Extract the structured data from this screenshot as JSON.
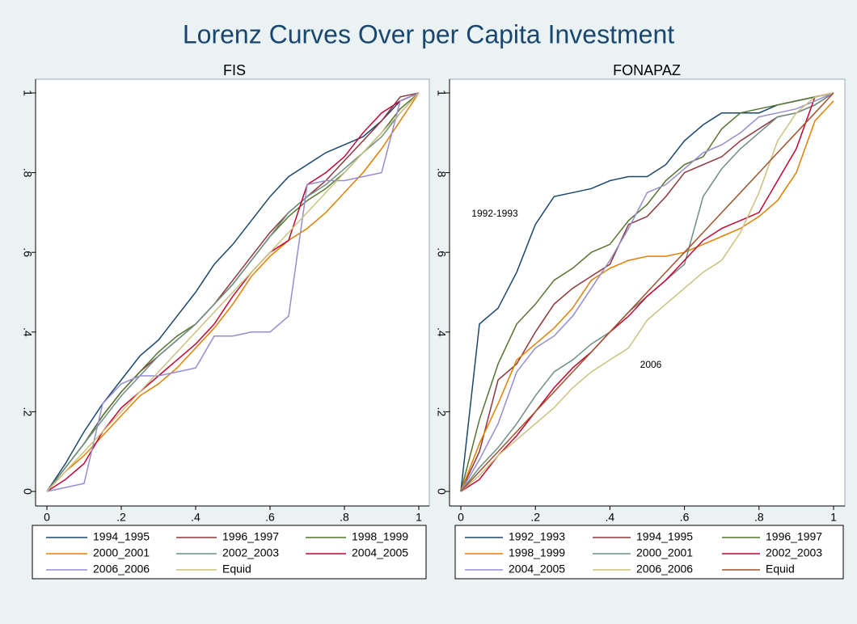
{
  "title": "Lorenz Curves Over per Capita Investment",
  "chart_data": [
    {
      "type": "line",
      "title": "FIS",
      "x": [
        0,
        0.05,
        0.1,
        0.15,
        0.2,
        0.25,
        0.3,
        0.35,
        0.4,
        0.45,
        0.5,
        0.55,
        0.6,
        0.65,
        0.7,
        0.75,
        0.8,
        0.85,
        0.9,
        0.95,
        1
      ],
      "xlim": [
        0,
        1
      ],
      "ylim": [
        0,
        1
      ],
      "xticks": [
        0,
        {
          "value": 0.2,
          "label": ".2"
        },
        {
          "value": 0.4,
          "label": ".4"
        },
        {
          "value": 0.6,
          "label": ".6"
        },
        {
          "value": 0.8,
          "label": ".8"
        },
        1
      ],
      "yticks": [
        0,
        {
          "value": 0.2,
          "label": ".2"
        },
        {
          "value": 0.4,
          "label": ".4"
        },
        {
          "value": 0.6,
          "label": ".6"
        },
        {
          "value": 0.8,
          "label": ".8"
        },
        1
      ],
      "series": [
        {
          "name": "1994_1995",
          "color": "#1a476f",
          "values": [
            0,
            0.07,
            0.15,
            0.22,
            0.28,
            0.34,
            0.38,
            0.44,
            0.5,
            0.57,
            0.62,
            0.68,
            0.74,
            0.79,
            0.82,
            0.85,
            0.87,
            0.89,
            0.93,
            0.98,
            1
          ]
        },
        {
          "name": "1996_1997",
          "color": "#90353b",
          "values": [
            0,
            0.06,
            0.12,
            0.19,
            0.25,
            0.3,
            0.34,
            0.38,
            0.42,
            0.47,
            0.53,
            0.59,
            0.65,
            0.7,
            0.74,
            0.78,
            0.83,
            0.88,
            0.93,
            0.99,
            1
          ]
        },
        {
          "name": "1998_1999",
          "color": "#55752f",
          "values": [
            0,
            0.06,
            0.12,
            0.19,
            0.25,
            0.3,
            0.35,
            0.39,
            0.42,
            0.47,
            0.52,
            0.58,
            0.64,
            0.69,
            0.73,
            0.76,
            0.8,
            0.85,
            0.9,
            0.96,
            1
          ]
        },
        {
          "name": "2000_2001",
          "color": "#e37e00",
          "values": [
            0,
            0.05,
            0.09,
            0.14,
            0.19,
            0.24,
            0.27,
            0.31,
            0.36,
            0.41,
            0.47,
            0.54,
            0.59,
            0.63,
            0.66,
            0.7,
            0.75,
            0.8,
            0.86,
            0.93,
            1
          ]
        },
        {
          "name": "2002_2003",
          "color": "#6e8e84",
          "values": [
            0,
            0.06,
            0.12,
            0.18,
            0.24,
            0.29,
            0.34,
            0.38,
            0.42,
            0.47,
            0.52,
            0.58,
            0.64,
            0.7,
            0.74,
            0.77,
            0.81,
            0.85,
            0.89,
            0.95,
            1
          ]
        },
        {
          "name": "2004_2005",
          "color": "#c10534",
          "values": [
            0,
            0.03,
            0.07,
            0.15,
            0.21,
            0.25,
            0.29,
            0.33,
            0.37,
            0.42,
            0.49,
            0.55,
            0.6,
            0.63,
            0.77,
            0.8,
            0.84,
            0.9,
            0.95,
            0.98,
            1
          ]
        },
        {
          "name": "2006_2006",
          "color": "#938dd2",
          "values": [
            0,
            0.01,
            0.02,
            0.22,
            0.27,
            0.29,
            0.29,
            0.3,
            0.31,
            0.39,
            0.39,
            0.4,
            0.4,
            0.44,
            0.77,
            0.78,
            0.78,
            0.79,
            0.8,
            0.98,
            1
          ]
        },
        {
          "name": "Equid",
          "color": "#cac27e",
          "values": [
            0,
            0.05,
            0.1,
            0.15,
            0.2,
            0.25,
            0.3,
            0.35,
            0.4,
            0.45,
            0.5,
            0.55,
            0.6,
            0.65,
            0.7,
            0.75,
            0.8,
            0.85,
            0.9,
            0.95,
            1
          ]
        }
      ]
    },
    {
      "type": "line",
      "title": "FONAPAZ",
      "x": [
        0,
        0.05,
        0.1,
        0.15,
        0.2,
        0.25,
        0.3,
        0.35,
        0.4,
        0.45,
        0.5,
        0.55,
        0.6,
        0.65,
        0.7,
        0.75,
        0.8,
        0.85,
        0.9,
        0.95,
        1
      ],
      "xlim": [
        0,
        1
      ],
      "ylim": [
        0,
        1
      ],
      "xticks": [
        0,
        {
          "value": 0.2,
          "label": ".2"
        },
        {
          "value": 0.4,
          "label": ".4"
        },
        {
          "value": 0.6,
          "label": ".6"
        },
        {
          "value": 0.8,
          "label": ".8"
        },
        1
      ],
      "yticks": [
        0,
        {
          "value": 0.2,
          "label": ".2"
        },
        {
          "value": 0.4,
          "label": ".4"
        },
        {
          "value": 0.6,
          "label": ".6"
        },
        {
          "value": 0.8,
          "label": ".8"
        },
        1
      ],
      "annotations": [
        "1992-1993",
        "2006"
      ],
      "series": [
        {
          "name": "1992_1993",
          "color": "#1a476f",
          "values": [
            0,
            0.42,
            0.46,
            0.55,
            0.67,
            0.74,
            0.75,
            0.76,
            0.78,
            0.79,
            0.79,
            0.82,
            0.88,
            0.92,
            0.95,
            0.95,
            0.95,
            0.97,
            0.98,
            0.99,
            1
          ]
        },
        {
          "name": "1994_1995",
          "color": "#90353b",
          "values": [
            0,
            0.1,
            0.28,
            0.32,
            0.4,
            0.47,
            0.51,
            0.54,
            0.57,
            0.67,
            0.69,
            0.74,
            0.8,
            0.82,
            0.84,
            0.88,
            0.91,
            0.94,
            0.95,
            0.97,
            1
          ]
        },
        {
          "name": "1996_1997",
          "color": "#55752f",
          "values": [
            0,
            0.18,
            0.32,
            0.42,
            0.47,
            0.53,
            0.56,
            0.6,
            0.62,
            0.68,
            0.72,
            0.78,
            0.82,
            0.84,
            0.91,
            0.95,
            0.96,
            0.97,
            0.98,
            0.99,
            1
          ]
        },
        {
          "name": "1998_1999",
          "color": "#e37e00",
          "values": [
            0,
            0.12,
            0.22,
            0.33,
            0.37,
            0.41,
            0.46,
            0.53,
            0.56,
            0.58,
            0.59,
            0.59,
            0.6,
            0.62,
            0.64,
            0.66,
            0.69,
            0.73,
            0.8,
            0.93,
            0.98
          ]
        },
        {
          "name": "2000_2001",
          "color": "#6e8e84",
          "values": [
            0,
            0.06,
            0.11,
            0.17,
            0.24,
            0.3,
            0.33,
            0.37,
            0.4,
            0.45,
            0.49,
            0.53,
            0.57,
            0.74,
            0.81,
            0.86,
            0.9,
            0.94,
            0.95,
            0.97,
            1
          ]
        },
        {
          "name": "2002_2003",
          "color": "#c10534",
          "values": [
            0,
            0.03,
            0.09,
            0.14,
            0.2,
            0.26,
            0.31,
            0.35,
            0.4,
            0.44,
            0.49,
            0.53,
            0.58,
            0.63,
            0.66,
            0.68,
            0.7,
            0.78,
            0.86,
            0.99,
            1
          ]
        },
        {
          "name": "2004_2005",
          "color": "#938dd2",
          "values": [
            0,
            0.08,
            0.17,
            0.3,
            0.36,
            0.39,
            0.44,
            0.51,
            0.58,
            0.66,
            0.75,
            0.77,
            0.81,
            0.85,
            0.87,
            0.9,
            0.94,
            0.95,
            0.96,
            0.98,
            1
          ]
        },
        {
          "name": "2006_2006",
          "color": "#cac27e",
          "values": [
            0,
            0.04,
            0.09,
            0.13,
            0.17,
            0.21,
            0.26,
            0.3,
            0.33,
            0.36,
            0.43,
            0.47,
            0.51,
            0.55,
            0.58,
            0.65,
            0.75,
            0.88,
            0.95,
            0.99,
            1
          ]
        },
        {
          "name": "Equid",
          "color": "#a0522d",
          "values": [
            0,
            0.05,
            0.1,
            0.15,
            0.2,
            0.25,
            0.3,
            0.35,
            0.4,
            0.45,
            0.5,
            0.55,
            0.6,
            0.65,
            0.7,
            0.75,
            0.8,
            0.85,
            0.9,
            0.95,
            1
          ]
        }
      ]
    }
  ]
}
